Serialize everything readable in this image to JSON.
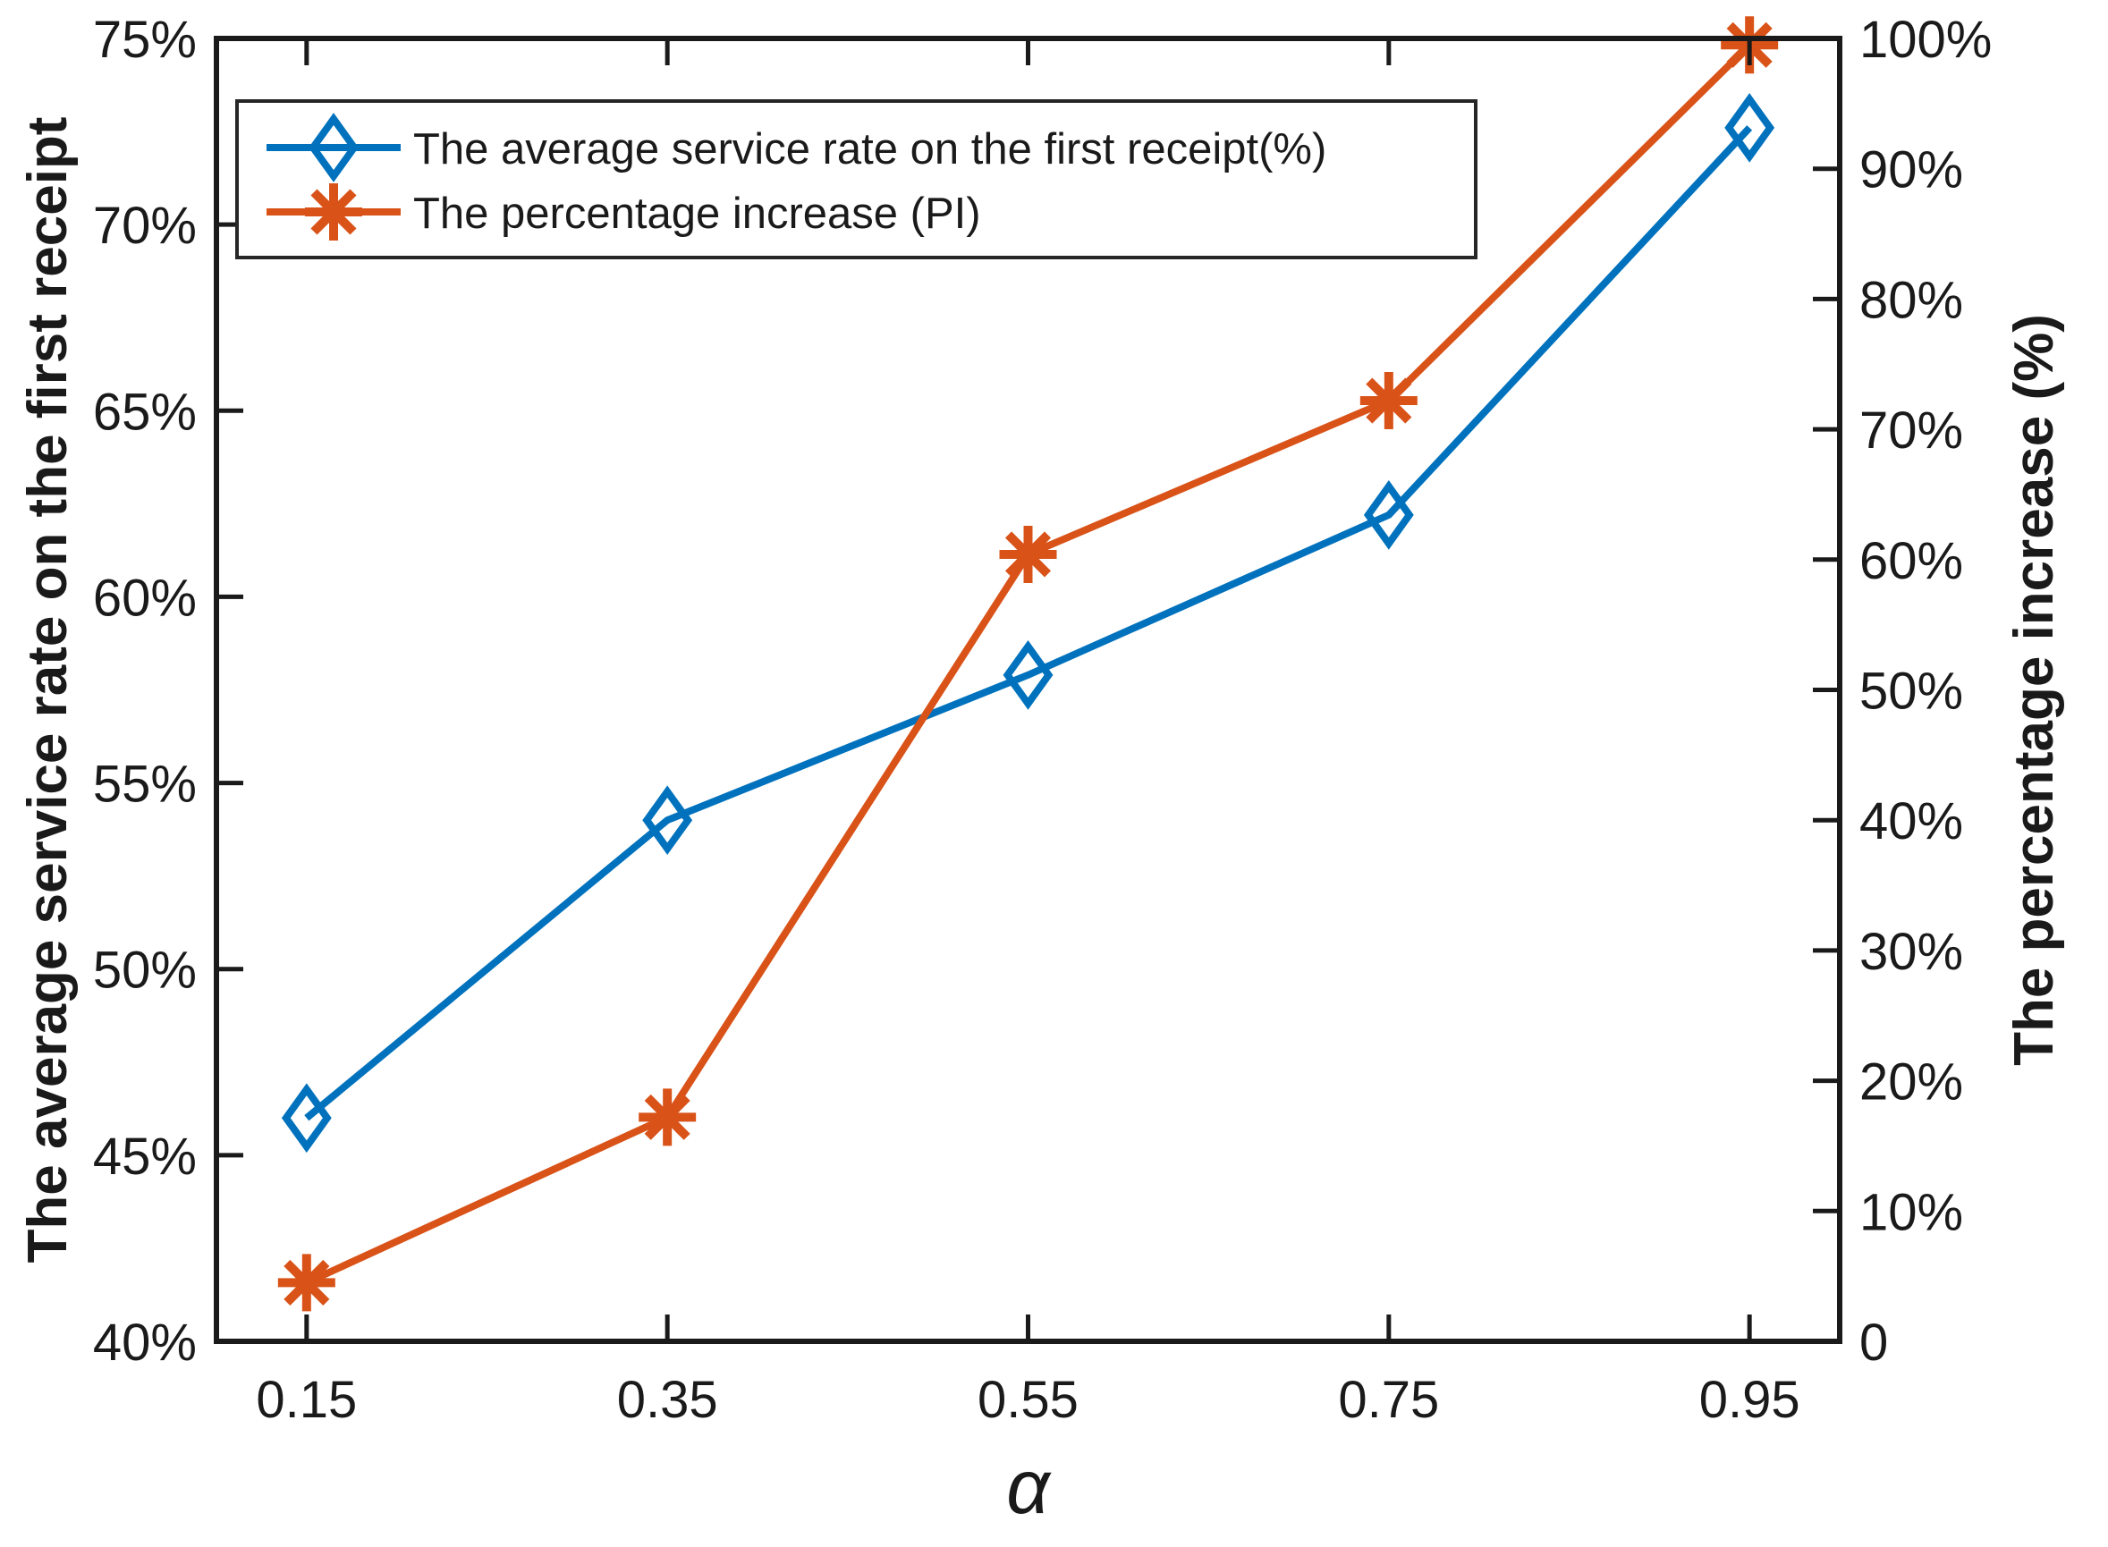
{
  "figure": {
    "background": "#ffffff",
    "axis_color": "#1a1a1a",
    "legend_border_color": "#262626"
  },
  "chart_data": {
    "type": "line",
    "x": [
      0.15,
      0.35,
      0.55,
      0.75,
      0.95
    ],
    "x_tick_labels": [
      "0.15",
      "0.35",
      "0.55",
      "0.75",
      "0.95"
    ],
    "xlim": [
      0.1,
      1.0
    ],
    "xlabel": "α",
    "grid": false,
    "legend_position": "top-left",
    "series": [
      {
        "name": "The average service rate on the first receipt(%)",
        "axis": "left",
        "color": "#0072BD",
        "marker": "diamond",
        "values": [
          46.0,
          54.0,
          57.9,
          62.2,
          72.6
        ]
      },
      {
        "name": "The percentage increase (PI)",
        "axis": "right",
        "color": "#D95319",
        "marker": "asterisk",
        "values": [
          4.5,
          17.2,
          60.4,
          72.2,
          99.5
        ]
      }
    ],
    "left_axis": {
      "label": "The average service rate on the first receipt",
      "min": 40,
      "max": 75,
      "tick_step": 5,
      "tick_labels": [
        "40%",
        "45%",
        "50%",
        "55%",
        "60%",
        "65%",
        "70%",
        "75%"
      ]
    },
    "right_axis": {
      "label": "The percentage increase (%)",
      "min": 0,
      "max": 100,
      "tick_step": 10,
      "tick_labels": [
        "0",
        "10%",
        "20%",
        "30%",
        "40%",
        "50%",
        "60%",
        "70%",
        "80%",
        "90%",
        "100%"
      ]
    }
  }
}
